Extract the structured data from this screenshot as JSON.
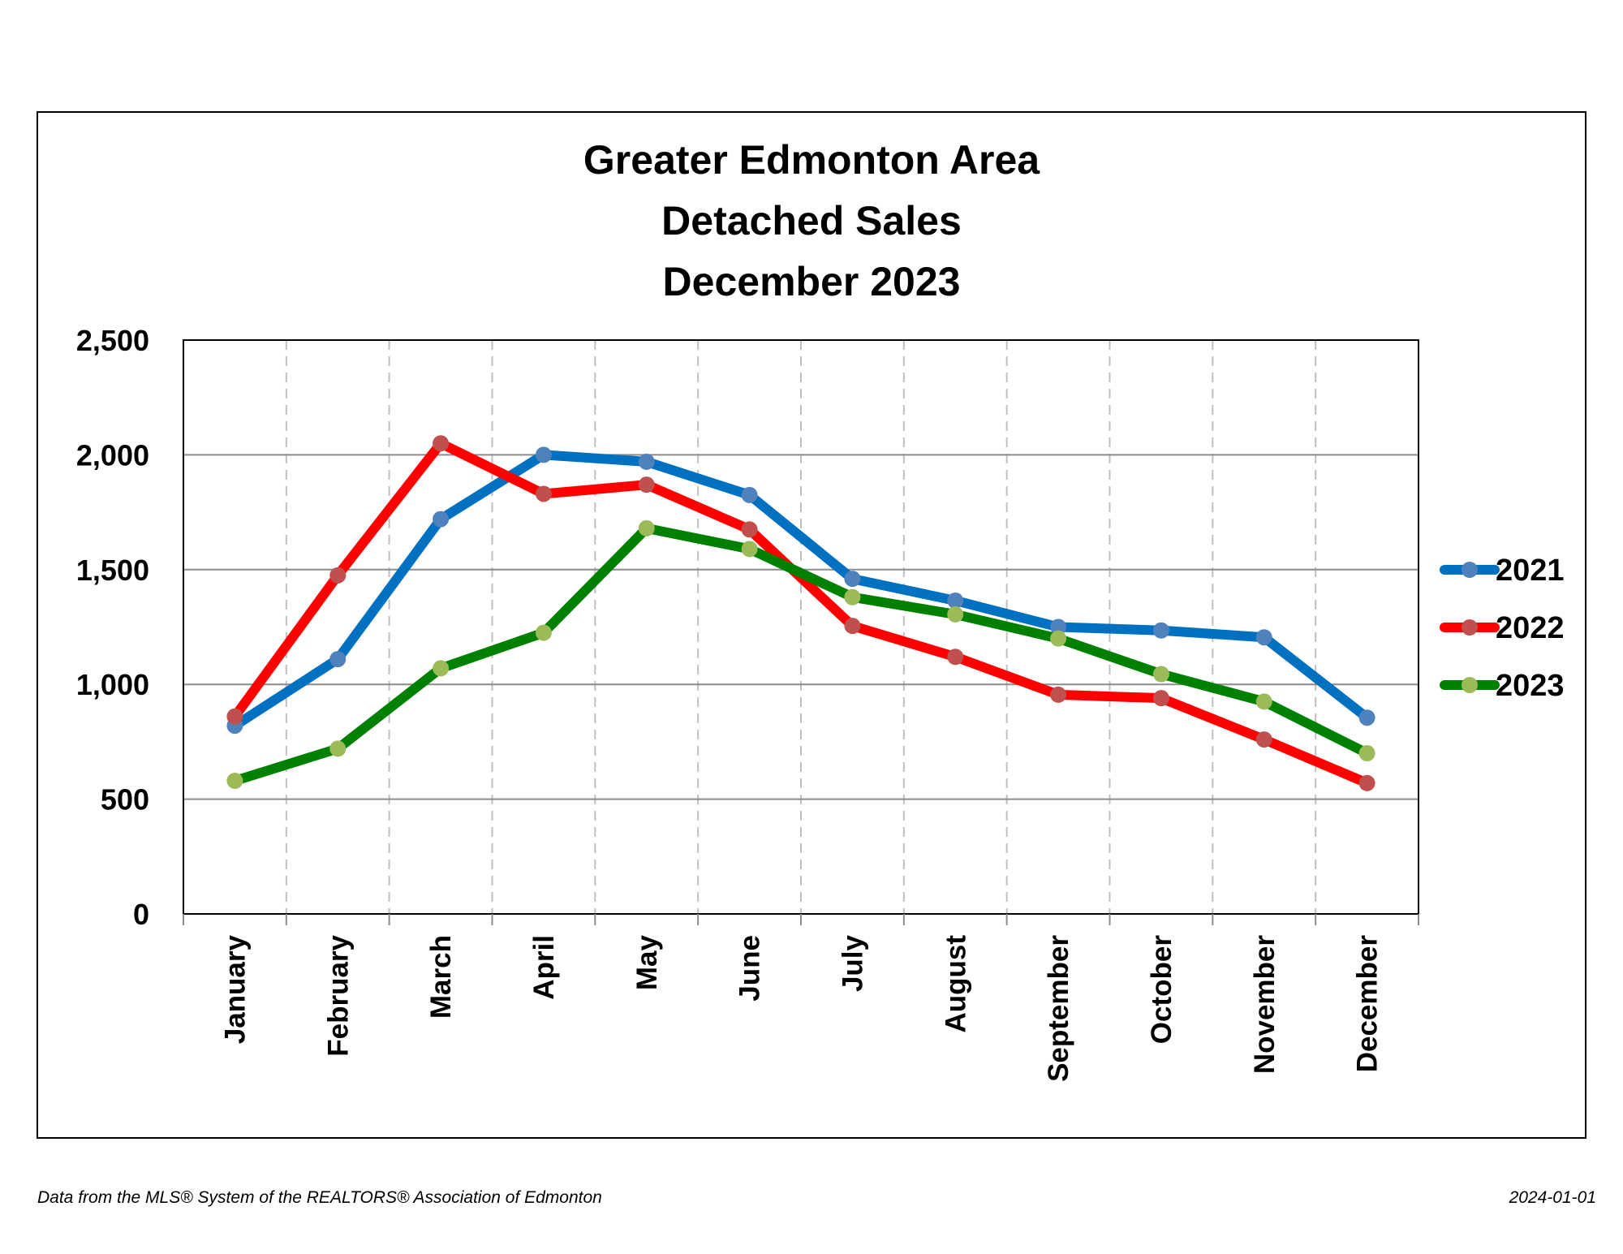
{
  "chart_data": {
    "type": "line",
    "title_lines": [
      "Greater Edmonton Area",
      "Detached Sales",
      "December 2023"
    ],
    "xlabel": "",
    "ylabel": "",
    "categories": [
      "January",
      "February",
      "March",
      "April",
      "May",
      "June",
      "July",
      "August",
      "September",
      "October",
      "November",
      "December"
    ],
    "ylim": [
      0,
      2500
    ],
    "yticks": [
      0,
      500,
      1000,
      1500,
      2000,
      2500
    ],
    "ytick_labels": [
      "0",
      "500",
      "1,000",
      "1,500",
      "2,000",
      "2,500"
    ],
    "grid": "horizontal solid, vertical dashed",
    "legend_placement": "right",
    "series": [
      {
        "name": "2021",
        "color": "#0070C0",
        "marker_color": "#4F81BD",
        "values": [
          820,
          1110,
          1720,
          2000,
          1970,
          1825,
          1460,
          1365,
          1250,
          1235,
          1205,
          855
        ]
      },
      {
        "name": "2022",
        "color": "#FF0000",
        "marker_color": "#C0504D",
        "values": [
          860,
          1475,
          2050,
          1830,
          1870,
          1675,
          1255,
          1120,
          955,
          940,
          760,
          570
        ]
      },
      {
        "name": "2023",
        "color": "#008000",
        "marker_color": "#9BBB59",
        "values": [
          580,
          720,
          1070,
          1225,
          1680,
          1590,
          1380,
          1305,
          1200,
          1045,
          925,
          700
        ]
      }
    ]
  },
  "footer": {
    "source": "Data from the MLS® System of the REALTORS® Association of Edmonton",
    "date": "2024-01-01"
  }
}
